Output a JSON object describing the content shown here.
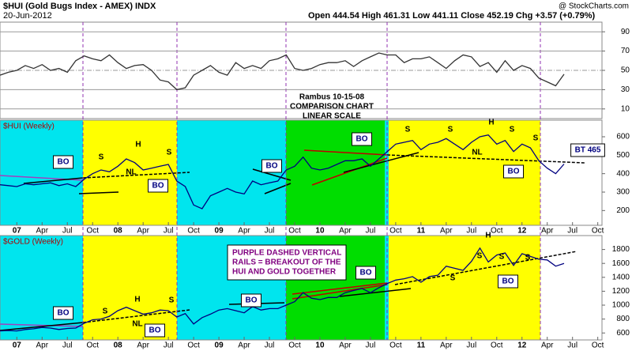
{
  "header": {
    "symbol": "$HUI (Gold Bugs Index - AMEX) INDX",
    "date": "20-Jun-2012",
    "quote": "Open 444.54  High 461.31  Low 441.11  Close 452.19  Chg +3.57 (+0.79%)",
    "source": "@ StockCharts.com"
  },
  "notes": [
    "Rambus  10-15-08",
    "COMPARISON CHART",
    "LINEAR SCALE",
    "PURPLE DASHED VERTICAL",
    "RAILS = BREAKOUT OF THE",
    "HUI AND GOLD TOGETHER"
  ],
  "chart_data": [
    {
      "type": "line",
      "color": "#333333",
      "grid": true,
      "x": [
        -2,
        -1,
        0,
        1,
        2,
        3,
        4,
        5,
        6,
        7,
        8,
        9,
        10,
        11,
        12,
        13,
        14,
        15,
        16,
        17,
        18,
        19,
        20,
        21,
        22,
        23,
        24,
        25,
        26,
        27,
        28,
        29,
        30,
        31,
        32,
        33,
        34,
        35,
        36,
        37,
        38,
        39,
        40,
        41,
        42,
        43,
        44,
        45,
        46,
        47,
        48,
        49,
        50,
        51,
        52,
        53,
        54,
        55,
        56,
        57,
        58,
        59,
        60,
        61,
        62,
        63,
        64,
        65
      ],
      "values": [
        45,
        48,
        50,
        55,
        52,
        56,
        50,
        52,
        48,
        60,
        65,
        62,
        60,
        66,
        58,
        52,
        55,
        56,
        50,
        40,
        38,
        30,
        32,
        45,
        50,
        55,
        48,
        45,
        58,
        52,
        55,
        52,
        60,
        62,
        66,
        52,
        50,
        52,
        56,
        58,
        58,
        60,
        54,
        60,
        64,
        68,
        66,
        66,
        58,
        62,
        62,
        64,
        58,
        52,
        60,
        66,
        64,
        54,
        58,
        48,
        60,
        50,
        55,
        52,
        42,
        38,
        34,
        46
      ],
      "xlim": [
        -2,
        69.5
      ],
      "ylim": [
        0,
        100
      ],
      "yticks": [
        10,
        30,
        50,
        70,
        90
      ]
    },
    {
      "type": "line",
      "title": "$HUI (Weekly)",
      "color": "#000080",
      "grid": false,
      "x": [
        -2,
        -1,
        0,
        1,
        2,
        3,
        4,
        5,
        6,
        7,
        8,
        9,
        10,
        11,
        12,
        13,
        14,
        15,
        16,
        17,
        18,
        19,
        20,
        21,
        22,
        23,
        24,
        25,
        26,
        27,
        28,
        29,
        30,
        31,
        32,
        33,
        34,
        35,
        36,
        37,
        38,
        39,
        40,
        41,
        42,
        43,
        44,
        45,
        46,
        47,
        48,
        49,
        50,
        51,
        52,
        53,
        54,
        55,
        56,
        57,
        58,
        59,
        60,
        61,
        62,
        63,
        64,
        65
      ],
      "values": [
        340,
        335,
        330,
        345,
        340,
        345,
        350,
        335,
        345,
        330,
        370,
        400,
        420,
        410,
        440,
        480,
        460,
        420,
        430,
        440,
        450,
        360,
        330,
        230,
        210,
        280,
        300,
        320,
        300,
        290,
        360,
        340,
        350,
        360,
        420,
        440,
        490,
        430,
        420,
        430,
        450,
        470,
        470,
        480,
        440,
        480,
        520,
        560,
        570,
        580,
        530,
        560,
        570,
        590,
        560,
        530,
        570,
        600,
        610,
        560,
        580,
        520,
        560,
        540,
        470,
        430,
        400,
        452
      ],
      "xlim": [
        -2,
        69.5
      ],
      "ylim": [
        120,
        690
      ],
      "yticks": [
        200,
        300,
        400,
        500,
        600
      ],
      "xticks": [
        {
          "value": 0,
          "label": "07"
        },
        {
          "value": 3,
          "label": "Apr"
        },
        {
          "value": 6,
          "label": "Jul"
        },
        {
          "value": 9,
          "label": "Oct"
        },
        {
          "value": 12,
          "label": "08"
        },
        {
          "value": 15,
          "label": "Apr"
        },
        {
          "value": 18,
          "label": "Jul"
        },
        {
          "value": 21,
          "label": "Oct"
        },
        {
          "value": 24,
          "label": "09"
        },
        {
          "value": 27,
          "label": "Apr"
        },
        {
          "value": 30,
          "label": "Jul"
        },
        {
          "value": 33,
          "label": "Oct"
        },
        {
          "value": 36,
          "label": "10"
        },
        {
          "value": 39,
          "label": "Apr"
        },
        {
          "value": 42,
          "label": "Jul"
        },
        {
          "value": 45,
          "label": "Oct"
        },
        {
          "value": 48,
          "label": "11"
        },
        {
          "value": 51,
          "label": "Apr"
        },
        {
          "value": 54,
          "label": "Jul"
        },
        {
          "value": 57,
          "label": "Oct"
        },
        {
          "value": 60,
          "label": "12"
        },
        {
          "value": 63,
          "label": "Apr"
        },
        {
          "value": 66,
          "label": "Jul"
        },
        {
          "value": 69,
          "label": "Oct"
        }
      ],
      "annotations": [
        "BO",
        "S",
        "H",
        "S",
        "NL",
        "BO",
        "BO",
        "BO",
        "S",
        "S",
        "H",
        "S",
        "S",
        "NL",
        "BO",
        "BT 465"
      ]
    },
    {
      "type": "line",
      "title": "$GOLD (Weekly)",
      "color": "#000080",
      "grid": false,
      "x": [
        -2,
        -1,
        0,
        1,
        2,
        3,
        4,
        5,
        6,
        7,
        8,
        9,
        10,
        11,
        12,
        13,
        14,
        15,
        16,
        17,
        18,
        19,
        20,
        21,
        22,
        23,
        24,
        25,
        26,
        27,
        28,
        29,
        30,
        31,
        32,
        33,
        34,
        35,
        36,
        37,
        38,
        39,
        40,
        41,
        42,
        43,
        44,
        45,
        46,
        47,
        48,
        49,
        50,
        51,
        52,
        53,
        54,
        55,
        56,
        57,
        58,
        59,
        60,
        61,
        62,
        63,
        64,
        65
      ],
      "values": [
        630,
        635,
        630,
        650,
        660,
        680,
        670,
        650,
        665,
        670,
        740,
        790,
        800,
        840,
        920,
        970,
        920,
        870,
        890,
        930,
        920,
        830,
        880,
        730,
        820,
        870,
        930,
        950,
        920,
        890,
        980,
        930,
        950,
        950,
        1000,
        1050,
        1180,
        1100,
        1080,
        1110,
        1110,
        1180,
        1210,
        1240,
        1180,
        1250,
        1310,
        1360,
        1380,
        1410,
        1330,
        1410,
        1430,
        1560,
        1530,
        1500,
        1630,
        1820,
        1620,
        1720,
        1750,
        1570,
        1740,
        1700,
        1660,
        1650,
        1560,
        1600
      ],
      "xlim": [
        -2,
        69.5
      ],
      "ylim": [
        500,
        2000
      ],
      "yticks": [
        600,
        800,
        1000,
        1200,
        1400,
        1600,
        1800
      ],
      "xticks": [
        {
          "value": 0,
          "label": "07"
        },
        {
          "value": 3,
          "label": "Apr"
        },
        {
          "value": 6,
          "label": "Jul"
        },
        {
          "value": 9,
          "label": "Oct"
        },
        {
          "value": 12,
          "label": "08"
        },
        {
          "value": 15,
          "label": "Apr"
        },
        {
          "value": 18,
          "label": "Jul"
        },
        {
          "value": 21,
          "label": "Oct"
        },
        {
          "value": 24,
          "label": "09"
        },
        {
          "value": 27,
          "label": "Apr"
        },
        {
          "value": 30,
          "label": "Jul"
        },
        {
          "value": 33,
          "label": "Oct"
        },
        {
          "value": 36,
          "label": "10"
        },
        {
          "value": 39,
          "label": "Apr"
        },
        {
          "value": 42,
          "label": "Jul"
        },
        {
          "value": 45,
          "label": "Oct"
        },
        {
          "value": 48,
          "label": "11"
        },
        {
          "value": 51,
          "label": "Apr"
        },
        {
          "value": 54,
          "label": "Jul"
        },
        {
          "value": 57,
          "label": "Oct"
        },
        {
          "value": 60,
          "label": "12"
        },
        {
          "value": 63,
          "label": "Apr"
        },
        {
          "value": 66,
          "label": "Jul"
        },
        {
          "value": 69,
          "label": "Oct"
        }
      ],
      "annotations": [
        "BO",
        "S",
        "H",
        "S",
        "NL",
        "BO",
        "BO",
        "BO",
        "S",
        "S",
        "H",
        "S",
        "S",
        "BO"
      ]
    }
  ]
}
